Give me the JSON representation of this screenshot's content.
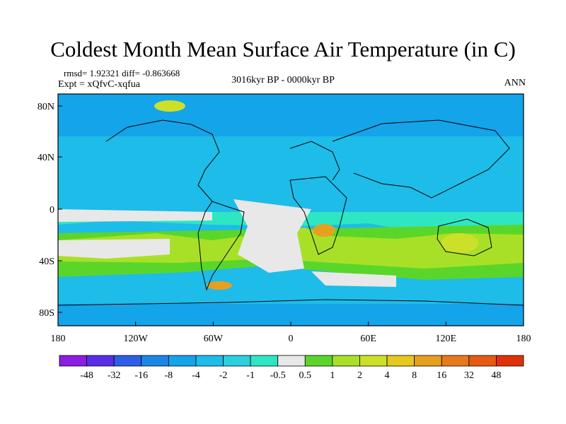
{
  "title": "Coldest Month Mean Surface Air Temperature (in C)",
  "stats": "rmsd= 1.92321 diff= -0.863668",
  "experiment": "Expt = xQfvC-xqfua",
  "period": "3016kyr BP - 0000kyr BP",
  "season": "ANN",
  "map": {
    "lat_ticks": [
      "80N",
      "40N",
      "0",
      "40S",
      "80S"
    ],
    "lon_ticks": [
      "180",
      "120W",
      "60W",
      "0",
      "60E",
      "120E",
      "180"
    ]
  },
  "colorbar": {
    "labels": [
      "-48",
      "-32",
      "-16",
      "-8",
      "-4",
      "-2",
      "-1",
      "-0.5",
      "0.5",
      "1",
      "2",
      "4",
      "8",
      "16",
      "32",
      "48"
    ],
    "colors": [
      "#8b1ee0",
      "#5a2ee6",
      "#2e5ee8",
      "#1a87e6",
      "#14a4ea",
      "#1ebce8",
      "#2acfe0",
      "#2ee6c4",
      "#e8e8e8",
      "#5ad62a",
      "#a8e028",
      "#cce02a",
      "#e6c81e",
      "#e6a01e",
      "#e87a1e",
      "#e65a14",
      "#e0320a"
    ]
  }
}
